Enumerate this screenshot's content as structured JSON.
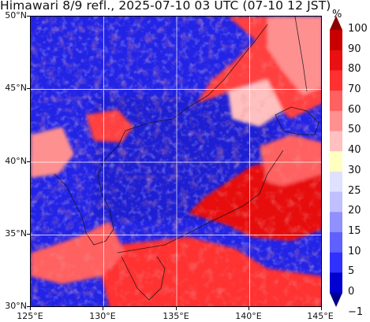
{
  "title": "Himawari 8/9 refl., 2025-07-10 03 UTC (07-10 12 JST)",
  "map": {
    "lat_ticks": [
      "50°N",
      "45°N",
      "40°N",
      "35°N",
      "30°N"
    ],
    "lon_ticks": [
      "125°E",
      "130°E",
      "135°E",
      "140°E",
      "145°E"
    ],
    "lat_range": [
      30,
      50
    ],
    "lon_range": [
      125,
      145
    ],
    "gridlines": true
  },
  "colorbar": {
    "unit": "%",
    "labels": [
      "100",
      "90",
      "80",
      "70",
      "60",
      "50",
      "40",
      "30",
      "25",
      "20",
      "15",
      "10",
      "5",
      "0",
      "−1"
    ],
    "colors": [
      "#8b0000",
      "#c80000",
      "#e81010",
      "#ff3030",
      "#ff6060",
      "#ff9090",
      "#ffc0c0",
      "#ffffc0",
      "#e0e0ff",
      "#c0c0ff",
      "#9090ff",
      "#6060ff",
      "#3030ff",
      "#0000d0",
      "#00008b"
    ]
  }
}
